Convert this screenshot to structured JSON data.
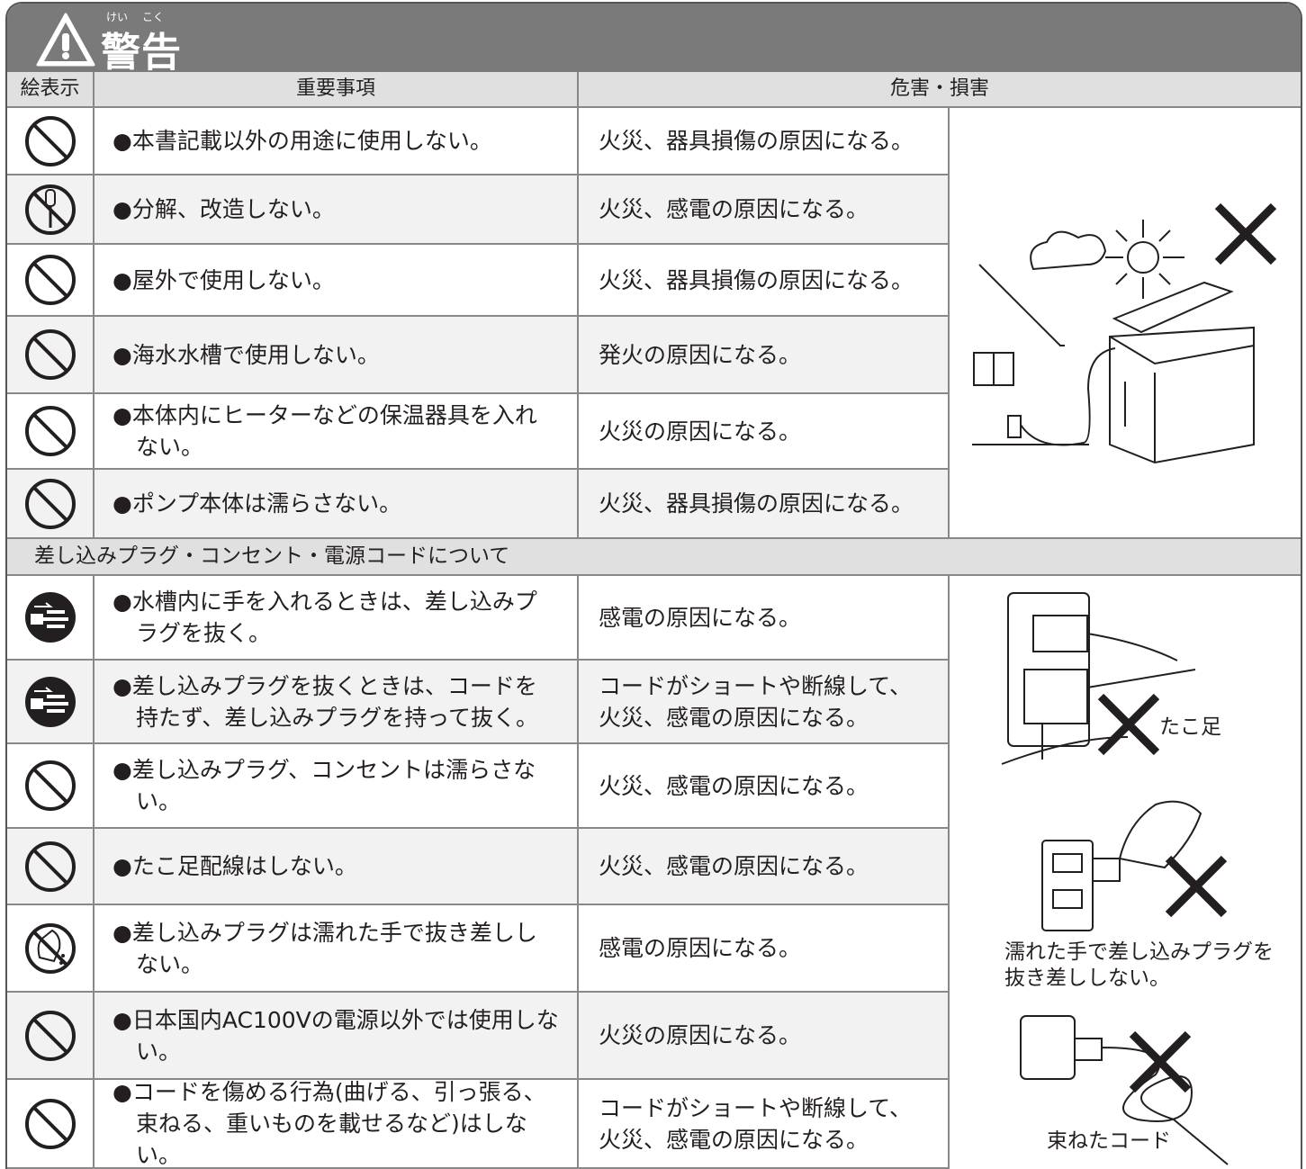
{
  "header": {
    "furigana": [
      "けい",
      "こく"
    ],
    "title": "警告"
  },
  "table": {
    "columns": [
      "絵表示",
      "重要事項",
      "危害・損害"
    ],
    "rows": [
      [
        "●本書記載以外の用途に使用しない。",
        "火災、器具損傷の原因になる。"
      ],
      [
        "●分解、改造しない。",
        "火災、感電の原因になる。"
      ],
      [
        "●屋外で使用しない。",
        "火災、器具損傷の原因になる。"
      ],
      [
        "●海水水槽で使用しない。",
        "発火の原因になる。"
      ],
      [
        "●本体内にヒーターなどの保温器具を入れない。",
        "火災の原因になる。"
      ],
      [
        "●ポンプ本体は濡らさない。",
        "火災、器具損傷の原因になる。"
      ]
    ],
    "section": "差し込みプラグ・コンセント・電源コードについて",
    "section_rows": [
      [
        "●水槽内に手を入れるときは、差し込みプラグを抜く。",
        "感電の原因になる。"
      ],
      [
        "●差し込みプラグを抜くときは、コードを持たず、差し込みプラグを持って抜く。",
        "コードがショートや断線して、火災、感電の原因になる。"
      ],
      [
        "●差し込みプラグ、コンセントは濡らさない。",
        "火災、感電の原因になる。"
      ],
      [
        "●たこ足配線はしない。",
        "火災、感電の原因になる。"
      ],
      [
        "●差し込みプラグは濡れた手で抜き差ししない。",
        "感電の原因になる。"
      ],
      [
        "●日本国内AC100Vの電源以外では使用しない。",
        "火災の原因になる。"
      ],
      [
        "●コードを傷める行為(曲げる、引っ張る、束ねる、重いものを載せるなど)はしない。",
        "コードがショートや断線して、火災、感電の原因になる。"
      ]
    ]
  },
  "illustrations": {
    "captions": [
      "たこ足",
      "濡れた手で差し込みプラグを抜き差ししない。",
      "束ねたコード"
    ]
  }
}
